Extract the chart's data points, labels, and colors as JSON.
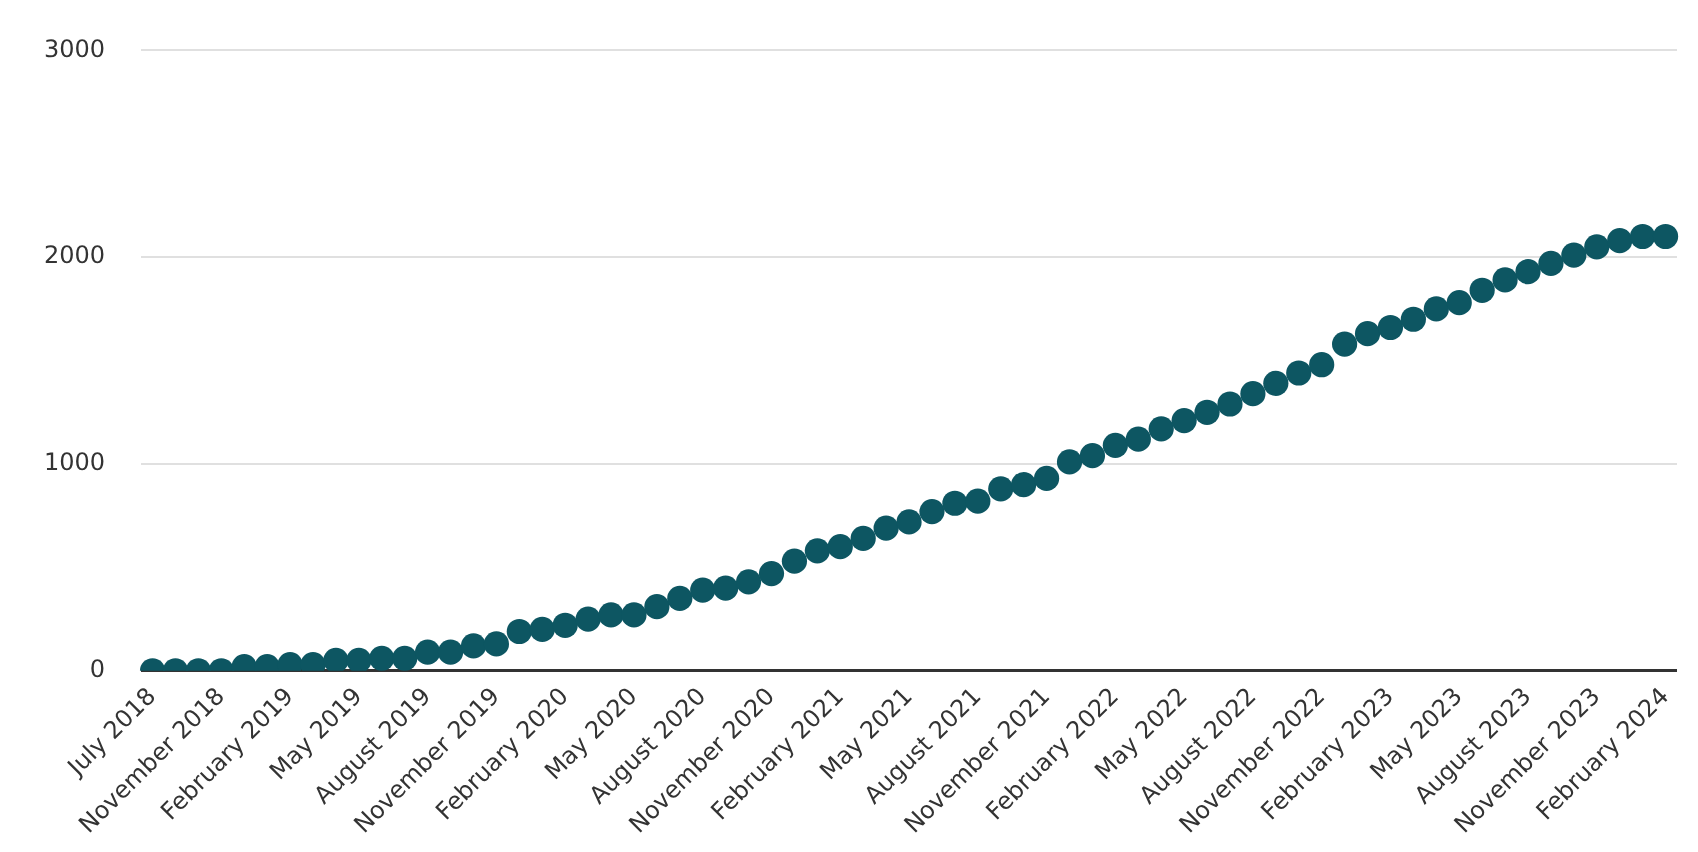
{
  "chart_data": {
    "type": "scatter",
    "categories": [
      "July 2018",
      null,
      null,
      "November 2018",
      null,
      null,
      "February 2019",
      null,
      null,
      "May 2019",
      null,
      null,
      "August 2019",
      null,
      null,
      "November 2019",
      null,
      null,
      "February 2020",
      null,
      null,
      "May 2020",
      null,
      null,
      "August 2020",
      null,
      null,
      "November 2020",
      null,
      null,
      "February 2021",
      null,
      null,
      "May 2021",
      null,
      null,
      "August 2021",
      null,
      null,
      "November 2021",
      null,
      null,
      "February 2022",
      null,
      null,
      "May 2022",
      null,
      null,
      "August 2022",
      null,
      null,
      "November 2022",
      null,
      null,
      "February 2023",
      null,
      null,
      "May 2023",
      null,
      null,
      "August 2023",
      null,
      null,
      "November 2023",
      null,
      null,
      "February 2024"
    ],
    "series": [
      {
        "color": "#0d5662",
        "values": [
          0,
          0,
          0,
          0,
          20,
          20,
          30,
          30,
          50,
          50,
          60,
          60,
          90,
          90,
          120,
          130,
          190,
          200,
          220,
          250,
          270,
          270,
          310,
          350,
          390,
          400,
          430,
          470,
          530,
          580,
          600,
          640,
          690,
          720,
          770,
          810,
          820,
          880,
          900,
          930,
          1010,
          1040,
          1090,
          1120,
          1170,
          1210,
          1250,
          1290,
          1340,
          1390,
          1440,
          1480,
          1580,
          1630,
          1660,
          1700,
          1750,
          1780,
          1840,
          1890,
          1930,
          1970,
          2010,
          2050,
          2080,
          2100,
          2100
        ]
      }
    ],
    "ylim": [
      0,
      3000
    ],
    "yticks": [
      0,
      1000,
      2000,
      3000
    ],
    "grid": "y",
    "legend": false,
    "marker": "circle"
  }
}
